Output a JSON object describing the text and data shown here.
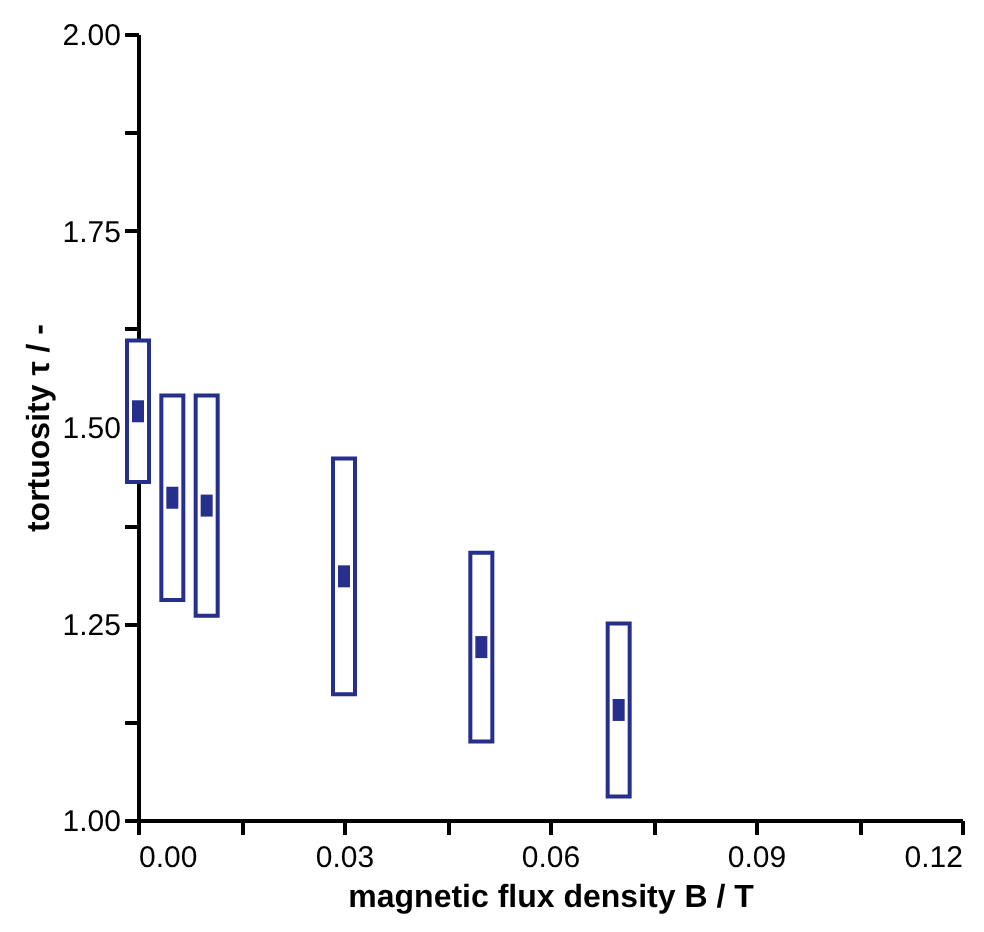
{
  "chart_data": {
    "type": "box",
    "xlabel": "magnetic flux density B / T",
    "ylabel": "tortuosity τ / -",
    "x": [
      0,
      0.005,
      0.01,
      0.03,
      0.05,
      0.07
    ],
    "boxes": [
      {
        "low": 1.43,
        "q1": 1.43,
        "median": 1.52,
        "q3": 1.61,
        "high": 1.61
      },
      {
        "low": 1.28,
        "q1": 1.28,
        "median": 1.41,
        "q3": 1.54,
        "high": 1.54
      },
      {
        "low": 1.26,
        "q1": 1.26,
        "median": 1.4,
        "q3": 1.54,
        "high": 1.54
      },
      {
        "low": 1.16,
        "q1": 1.16,
        "median": 1.31,
        "q3": 1.46,
        "high": 1.46
      },
      {
        "low": 1.1,
        "q1": 1.1,
        "median": 1.22,
        "q3": 1.34,
        "high": 1.34
      },
      {
        "low": 1.03,
        "q1": 1.03,
        "median": 1.14,
        "q3": 1.25,
        "high": 1.25
      }
    ],
    "color": "#262f8c",
    "xlim": [
      0,
      0.12
    ],
    "xticks": [
      {
        "value": 0,
        "label": "0.00"
      },
      {
        "value": 0.015,
        "label": null
      },
      {
        "value": 0.03,
        "label": "0.03"
      },
      {
        "value": 0.045,
        "label": null
      },
      {
        "value": 0.06,
        "label": "0.06"
      },
      {
        "value": 0.075,
        "label": null
      },
      {
        "value": 0.09,
        "label": "0.09"
      },
      {
        "value": 0.105,
        "label": null
      },
      {
        "value": 0.12,
        "label": "0.12"
      }
    ],
    "ylim": [
      1.0,
      2.0
    ],
    "yticks": [
      {
        "value": 1.0,
        "label": "1.00"
      },
      {
        "value": 1.125,
        "label": null
      },
      {
        "value": 1.25,
        "label": "1.25"
      },
      {
        "value": 1.375,
        "label": null
      },
      {
        "value": 1.5,
        "label": "1.50"
      },
      {
        "value": 1.625,
        "label": null
      },
      {
        "value": 1.75,
        "label": "1.75"
      },
      {
        "value": 1.875,
        "label": null
      },
      {
        "value": 2.0,
        "label": "2.00"
      }
    ],
    "grid": false
  }
}
